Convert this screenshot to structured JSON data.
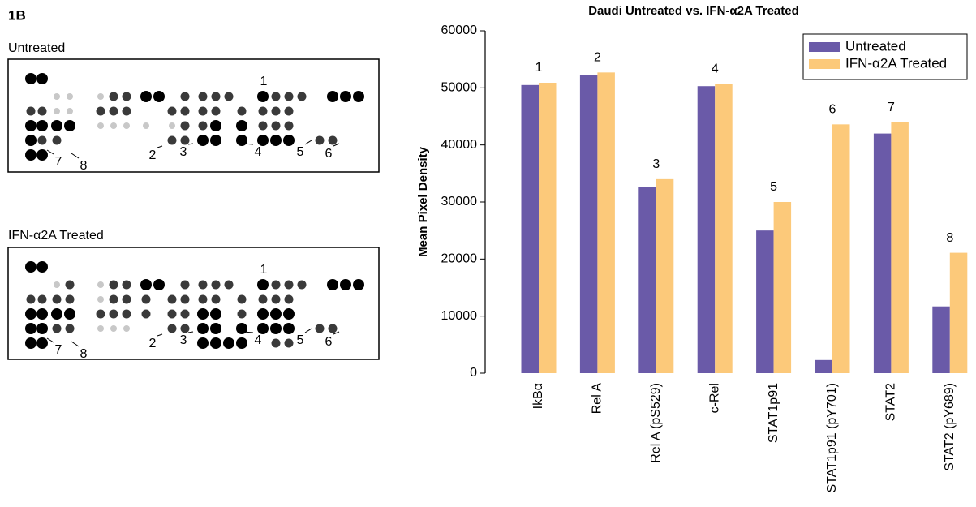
{
  "figure_label": "1B",
  "blots": [
    {
      "label": "Untreated",
      "callouts": [
        "1",
        "2",
        "3",
        "4",
        "5",
        "6",
        "7",
        "8"
      ]
    },
    {
      "label": "IFN-α2A Treated",
      "callouts": [
        "1",
        "2",
        "3",
        "4",
        "5",
        "6",
        "7",
        "8"
      ]
    }
  ],
  "chart_data": {
    "type": "bar",
    "title": "Daudi Untreated vs. IFN-α2A Treated",
    "y_label": "Mean Pixel Density",
    "categories": [
      "IkBα",
      "Rel A",
      "Rel A (pS529)",
      "c-Rel",
      "STAT1p91",
      "STAT1p91 (pY701)",
      "STAT2",
      "STAT2 (pY689)"
    ],
    "annotations": [
      "1",
      "2",
      "3",
      "4",
      "5",
      "6",
      "7",
      "8"
    ],
    "series": [
      {
        "name": "Untreated",
        "color": "#6a5aa8",
        "values": [
          50500,
          52200,
          32600,
          50300,
          25000,
          2300,
          42000,
          11700
        ]
      },
      {
        "name": "IFN-α2A Treated",
        "color": "#fcc97a",
        "values": [
          50900,
          52700,
          34000,
          50700,
          30000,
          43600,
          44000,
          21100
        ]
      }
    ],
    "ylim": [
      0,
      60000
    ],
    "yticks": [
      0,
      10000,
      20000,
      30000,
      40000,
      50000,
      60000
    ],
    "grid": false,
    "legend": "top-right"
  }
}
